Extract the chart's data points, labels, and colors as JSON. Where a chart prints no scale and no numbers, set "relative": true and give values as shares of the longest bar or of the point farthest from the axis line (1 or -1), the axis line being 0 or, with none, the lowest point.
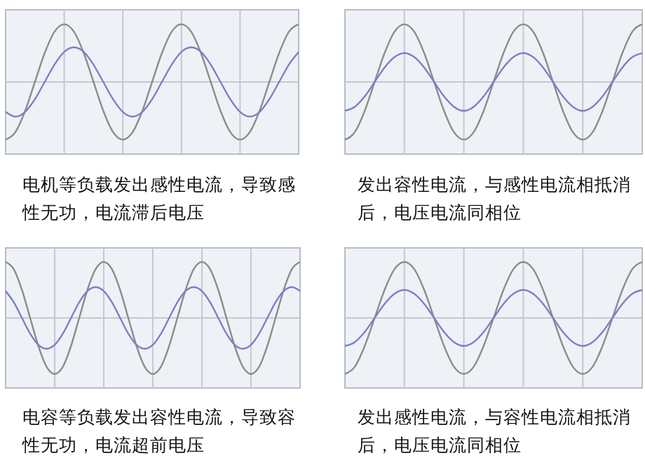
{
  "chart_data": [
    {
      "type": "line",
      "relative": true,
      "grid": true,
      "annotations": [
        "电机等负载发出感性电流，导致感性无功，电流滞后电压"
      ],
      "categories": [
        null,
        null,
        null,
        null,
        null,
        null,
        null,
        null,
        null,
        null,
        null,
        null,
        null,
        null,
        null,
        null,
        null,
        null,
        null,
        null,
        null,
        null,
        null,
        null,
        null,
        null,
        null,
        null,
        null,
        null,
        null
      ],
      "series": [
        {
          "color": "#8c8c8c",
          "values": [
            -1,
            -0.87,
            -0.5,
            0,
            0.5,
            0.87,
            1,
            0.87,
            0.5,
            0,
            -0.5,
            -0.87,
            -1,
            -0.87,
            -0.5,
            0,
            0.5,
            0.87,
            1,
            0.87,
            0.5,
            0,
            -0.5,
            -0.87,
            -1,
            -0.87,
            -0.5,
            0,
            0.5,
            0.87,
            1
          ]
        },
        {
          "color": "#7b7fc8",
          "values": [
            -0.52,
            -0.6,
            -0.52,
            -0.3,
            0,
            0.3,
            0.52,
            0.6,
            0.52,
            0.3,
            0,
            -0.3,
            -0.52,
            -0.6,
            -0.52,
            -0.3,
            0,
            0.3,
            0.52,
            0.6,
            0.52,
            0.3,
            0,
            -0.3,
            -0.52,
            -0.6,
            -0.52,
            -0.3,
            0,
            0.3,
            0.52
          ]
        }
      ]
    },
    {
      "type": "line",
      "relative": true,
      "grid": true,
      "annotations": [
        "发出容性电流，与感性电流相抵消后，电压电流同相位"
      ],
      "categories": [
        null,
        null,
        null,
        null,
        null,
        null,
        null,
        null,
        null,
        null,
        null,
        null,
        null,
        null,
        null,
        null,
        null,
        null,
        null,
        null,
        null,
        null,
        null,
        null,
        null,
        null,
        null,
        null,
        null,
        null,
        null
      ],
      "series": [
        {
          "color": "#8c8c8c",
          "values": [
            -1,
            -0.87,
            -0.5,
            0,
            0.5,
            0.87,
            1,
            0.87,
            0.5,
            0,
            -0.5,
            -0.87,
            -1,
            -0.87,
            -0.5,
            0,
            0.5,
            0.87,
            1,
            0.87,
            0.5,
            0,
            -0.5,
            -0.87,
            -1,
            -0.87,
            -0.5,
            0,
            0.5,
            0.87,
            1
          ]
        },
        {
          "color": "#7b7fc8",
          "values": [
            -0.5,
            -0.43,
            -0.25,
            0,
            0.25,
            0.43,
            0.5,
            0.43,
            0.25,
            0,
            -0.25,
            -0.43,
            -0.5,
            -0.43,
            -0.25,
            0,
            0.25,
            0.43,
            0.5,
            0.43,
            0.25,
            0,
            -0.25,
            -0.43,
            -0.5,
            -0.43,
            -0.25,
            0,
            0.25,
            0.43,
            0.5
          ]
        }
      ]
    },
    {
      "type": "line",
      "relative": true,
      "grid": true,
      "annotations": [
        "电容等负载发出容性电流，导致容性无功，电流超前电压"
      ],
      "categories": [
        null,
        null,
        null,
        null,
        null,
        null,
        null,
        null,
        null,
        null,
        null,
        null,
        null,
        null,
        null,
        null,
        null,
        null,
        null,
        null,
        null,
        null,
        null,
        null,
        null,
        null,
        null,
        null,
        null,
        null,
        null,
        null,
        null,
        null,
        null,
        null,
        null
      ],
      "series": [
        {
          "color": "#8c8c8c",
          "values": [
            1,
            0.87,
            0.5,
            0,
            -0.5,
            -0.87,
            -1,
            -0.87,
            -0.5,
            0,
            0.5,
            0.87,
            1,
            0.87,
            0.5,
            0,
            -0.5,
            -0.87,
            -1,
            -0.87,
            -0.5,
            0,
            0.5,
            0.87,
            1,
            0.87,
            0.5,
            0,
            -0.5,
            -0.87,
            -1,
            -0.87,
            -0.5,
            0,
            0.5,
            0.87,
            1
          ]
        },
        {
          "color": "#7b7fc8",
          "values": [
            0.48,
            0.28,
            0,
            -0.28,
            -0.48,
            -0.55,
            -0.48,
            -0.28,
            0,
            0.28,
            0.48,
            0.55,
            0.48,
            0.28,
            0,
            -0.28,
            -0.48,
            -0.55,
            -0.48,
            -0.28,
            0,
            0.28,
            0.48,
            0.55,
            0.48,
            0.28,
            0,
            -0.28,
            -0.48,
            -0.55,
            -0.48,
            -0.28,
            0,
            0.28,
            0.48,
            0.55,
            0.48
          ]
        }
      ]
    },
    {
      "type": "line",
      "relative": true,
      "grid": true,
      "annotations": [
        "发出感性电流，与容性电流相抵消后，电压电流同相位"
      ],
      "categories": [
        null,
        null,
        null,
        null,
        null,
        null,
        null,
        null,
        null,
        null,
        null,
        null,
        null,
        null,
        null,
        null,
        null,
        null,
        null,
        null,
        null,
        null,
        null,
        null,
        null,
        null,
        null,
        null,
        null,
        null,
        null
      ],
      "series": [
        {
          "color": "#8c8c8c",
          "values": [
            -1,
            -0.87,
            -0.5,
            0,
            0.5,
            0.87,
            1,
            0.87,
            0.5,
            0,
            -0.5,
            -0.87,
            -1,
            -0.87,
            -0.5,
            0,
            0.5,
            0.87,
            1,
            0.87,
            0.5,
            0,
            -0.5,
            -0.87,
            -1,
            -0.87,
            -0.5,
            0,
            0.5,
            0.87,
            1
          ]
        },
        {
          "color": "#7b7fc8",
          "values": [
            -0.5,
            -0.43,
            -0.25,
            0,
            0.25,
            0.43,
            0.5,
            0.43,
            0.25,
            0,
            -0.25,
            -0.43,
            -0.5,
            -0.43,
            -0.25,
            0,
            0.25,
            0.43,
            0.5,
            0.43,
            0.25,
            0,
            -0.25,
            -0.43,
            -0.5,
            -0.43,
            -0.25,
            0,
            0.25,
            0.43,
            0.5
          ]
        }
      ]
    }
  ]
}
